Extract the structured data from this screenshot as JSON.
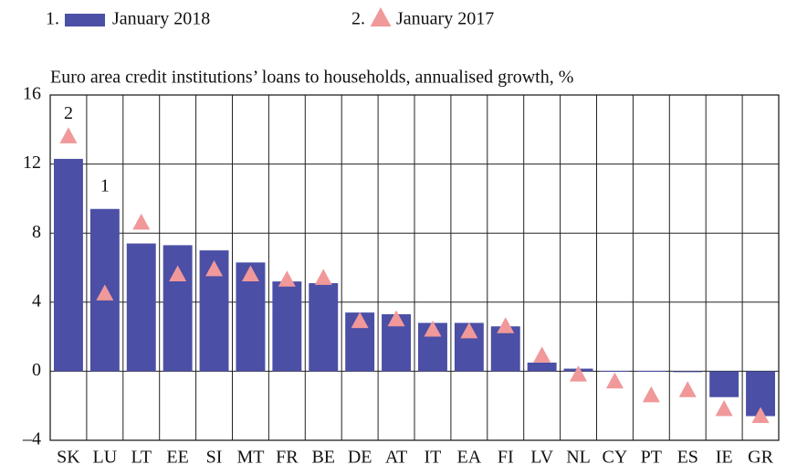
{
  "chart_data": {
    "type": "bar",
    "title": "Euro area credit institutions’ loans to households, annualised growth, %",
    "categories": [
      "SK",
      "LU",
      "LT",
      "EE",
      "SI",
      "MT",
      "FR",
      "BE",
      "DE",
      "AT",
      "IT",
      "EA",
      "FI",
      "LV",
      "NL",
      "CY",
      "PT",
      "ES",
      "IE",
      "GR"
    ],
    "series": [
      {
        "name": "January 2018",
        "legend_prefix": "1.",
        "marker": "bar",
        "color": "#4b4fa5",
        "values": [
          12.3,
          9.4,
          7.4,
          7.3,
          7.0,
          6.3,
          5.2,
          5.1,
          3.4,
          3.3,
          2.8,
          2.8,
          2.6,
          0.5,
          0.15,
          0.02,
          0.02,
          -0.05,
          -1.5,
          -2.6
        ]
      },
      {
        "name": "January 2017",
        "legend_prefix": "2.",
        "marker": "triangle",
        "color": "#f0989a",
        "values": [
          13.6,
          4.5,
          8.6,
          5.6,
          5.9,
          5.6,
          5.3,
          5.4,
          2.9,
          3.0,
          2.4,
          2.3,
          2.6,
          0.9,
          -0.2,
          -0.6,
          -1.4,
          -1.1,
          -2.2,
          -2.6
        ]
      }
    ],
    "annotations": [
      {
        "text": "2",
        "category": "SK"
      },
      {
        "text": "1",
        "category": "LU"
      }
    ],
    "ylim": [
      -4,
      16
    ],
    "yticks": [
      {
        "value": -4,
        "label": "–4"
      },
      0,
      4,
      8,
      12,
      16
    ],
    "grid": true
  }
}
